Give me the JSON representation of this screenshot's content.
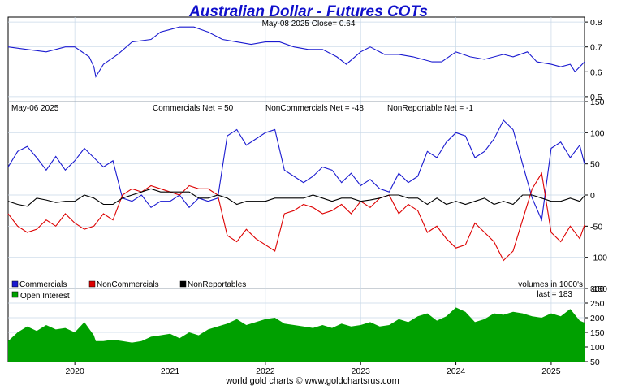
{
  "title": "Australian Dollar - Futures COTs",
  "footer": "world gold charts © www.goldchartsrus.com",
  "colors": {
    "price": "#1a1ad0",
    "commercials": "#1a1ad0",
    "noncommercials": "#dd0000",
    "nonreportables": "#000000",
    "open_interest": "#00a000",
    "grid": "#c8d8e8",
    "title": "#1010cc"
  },
  "price_panel": {
    "header": "May-08  2025   Close= 0.64",
    "y_ticks": [
      "0.8",
      "0.7",
      "0.6",
      "0.5"
    ]
  },
  "cot_panel": {
    "date": "May-06  2025",
    "commercials_net": "Commercials Net = 50",
    "noncommercials_net": "NonCommercials Net = -48",
    "nonreportable_net": "NonReportable Net = -1",
    "y_ticks": [
      "150",
      "100",
      "50",
      "0",
      "-50",
      "-100",
      "-150"
    ],
    "legend": [
      "Commercials",
      "NonCommercials",
      "NonReportables"
    ],
    "units": "volumes in 1000's"
  },
  "oi_panel": {
    "legend": "Open Interest",
    "last": "last = 183",
    "y_ticks": [
      "300",
      "250",
      "200",
      "150",
      "100",
      "50"
    ]
  },
  "x_ticks": [
    "2020",
    "2021",
    "2022",
    "2023",
    "2024",
    "2025"
  ],
  "chart_data": [
    {
      "type": "line",
      "name": "price",
      "x": [
        2019.3,
        2019.5,
        2019.7,
        2019.9,
        2020.0,
        2020.15,
        2020.2,
        2020.22,
        2020.3,
        2020.45,
        2020.6,
        2020.8,
        2020.9,
        2021.0,
        2021.1,
        2021.25,
        2021.4,
        2021.55,
        2021.7,
        2021.85,
        2022.0,
        2022.15,
        2022.3,
        2022.45,
        2022.6,
        2022.75,
        2022.85,
        2023.0,
        2023.1,
        2023.25,
        2023.4,
        2023.55,
        2023.75,
        2023.85,
        2024.0,
        2024.15,
        2024.3,
        2024.5,
        2024.6,
        2024.75,
        2024.85,
        2025.0,
        2025.1,
        2025.2,
        2025.25,
        2025.35
      ],
      "values": [
        0.7,
        0.69,
        0.68,
        0.7,
        0.7,
        0.66,
        0.62,
        0.58,
        0.63,
        0.67,
        0.72,
        0.73,
        0.76,
        0.77,
        0.78,
        0.78,
        0.76,
        0.73,
        0.72,
        0.71,
        0.72,
        0.72,
        0.7,
        0.69,
        0.69,
        0.66,
        0.63,
        0.68,
        0.7,
        0.67,
        0.67,
        0.66,
        0.64,
        0.64,
        0.68,
        0.66,
        0.65,
        0.67,
        0.66,
        0.68,
        0.64,
        0.63,
        0.62,
        0.63,
        0.6,
        0.64
      ],
      "ylim": [
        0.48,
        0.82
      ],
      "xlim": [
        2019.3,
        2025.35
      ]
    },
    {
      "type": "line",
      "x": [
        2019.3,
        2019.4,
        2019.5,
        2019.6,
        2019.7,
        2019.8,
        2019.9,
        2020.0,
        2020.1,
        2020.2,
        2020.3,
        2020.4,
        2020.5,
        2020.6,
        2020.7,
        2020.8,
        2020.9,
        2021.0,
        2021.1,
        2021.2,
        2021.3,
        2021.4,
        2021.5,
        2021.6,
        2021.7,
        2021.8,
        2021.9,
        2022.0,
        2022.1,
        2022.2,
        2022.3,
        2022.4,
        2022.5,
        2022.6,
        2022.7,
        2022.8,
        2022.9,
        2023.0,
        2023.1,
        2023.2,
        2023.3,
        2023.4,
        2023.5,
        2023.6,
        2023.7,
        2023.8,
        2023.9,
        2024.0,
        2024.1,
        2024.2,
        2024.3,
        2024.4,
        2024.5,
        2024.6,
        2024.7,
        2024.8,
        2024.9,
        2025.0,
        2025.1,
        2025.2,
        2025.3,
        2025.35
      ],
      "series": [
        {
          "name": "Commercials",
          "values": [
            45,
            70,
            78,
            60,
            40,
            62,
            40,
            55,
            75,
            60,
            45,
            55,
            -5,
            -10,
            0,
            -20,
            -10,
            -10,
            0,
            -20,
            -5,
            -10,
            -5,
            95,
            105,
            80,
            90,
            100,
            105,
            40,
            30,
            20,
            30,
            45,
            40,
            20,
            35,
            15,
            25,
            10,
            5,
            35,
            20,
            30,
            70,
            60,
            85,
            100,
            95,
            60,
            70,
            90,
            120,
            105,
            50,
            -5,
            -40,
            75,
            85,
            60,
            80,
            50
          ]
        },
        {
          "name": "NonCommercials",
          "values": [
            -30,
            -50,
            -60,
            -55,
            -40,
            -50,
            -30,
            -45,
            -55,
            -50,
            -30,
            -40,
            0,
            10,
            5,
            15,
            10,
            5,
            0,
            15,
            10,
            10,
            0,
            -65,
            -75,
            -55,
            -70,
            -80,
            -90,
            -30,
            -25,
            -15,
            -20,
            -30,
            -25,
            -15,
            -30,
            -10,
            -20,
            -5,
            0,
            -30,
            -15,
            -25,
            -60,
            -50,
            -70,
            -85,
            -80,
            -45,
            -60,
            -75,
            -105,
            -90,
            -40,
            10,
            35,
            -60,
            -75,
            -50,
            -70,
            -48
          ]
        },
        {
          "name": "NonReportables",
          "values": [
            -10,
            -15,
            -18,
            -5,
            -8,
            -12,
            -10,
            -10,
            0,
            -5,
            -15,
            -15,
            -5,
            0,
            5,
            10,
            5,
            5,
            5,
            5,
            -5,
            -5,
            0,
            -5,
            -15,
            -10,
            -10,
            -10,
            -5,
            -5,
            -5,
            -5,
            0,
            -5,
            -10,
            -5,
            -5,
            -10,
            -8,
            -5,
            0,
            0,
            -5,
            -5,
            -15,
            -5,
            -15,
            -10,
            -15,
            -10,
            -5,
            -15,
            -10,
            -15,
            0,
            0,
            -5,
            -10,
            -10,
            -5,
            -10,
            -1
          ]
        }
      ],
      "ylim": [
        -150,
        150
      ],
      "xlim": [
        2019.3,
        2025.35
      ]
    },
    {
      "type": "area",
      "name": "Open Interest",
      "x": [
        2019.3,
        2019.4,
        2019.5,
        2019.6,
        2019.7,
        2019.8,
        2019.9,
        2020.0,
        2020.1,
        2020.2,
        2020.22,
        2020.3,
        2020.4,
        2020.5,
        2020.6,
        2020.7,
        2020.8,
        2020.9,
        2021.0,
        2021.1,
        2021.2,
        2021.3,
        2021.4,
        2021.5,
        2021.6,
        2021.7,
        2021.8,
        2021.9,
        2022.0,
        2022.1,
        2022.2,
        2022.3,
        2022.4,
        2022.5,
        2022.6,
        2022.7,
        2022.8,
        2022.9,
        2023.0,
        2023.1,
        2023.2,
        2023.3,
        2023.4,
        2023.5,
        2023.6,
        2023.7,
        2023.8,
        2023.9,
        2024.0,
        2024.1,
        2024.2,
        2024.3,
        2024.4,
        2024.5,
        2024.6,
        2024.7,
        2024.8,
        2024.9,
        2025.0,
        2025.1,
        2025.2,
        2025.3,
        2025.35
      ],
      "values": [
        120,
        150,
        170,
        155,
        175,
        160,
        165,
        150,
        185,
        140,
        120,
        120,
        125,
        120,
        115,
        120,
        135,
        140,
        145,
        130,
        150,
        140,
        160,
        170,
        180,
        195,
        175,
        185,
        195,
        200,
        180,
        175,
        170,
        165,
        175,
        165,
        180,
        170,
        175,
        185,
        170,
        175,
        195,
        185,
        205,
        215,
        190,
        205,
        235,
        220,
        185,
        195,
        215,
        210,
        220,
        215,
        205,
        200,
        215,
        205,
        230,
        190,
        183
      ],
      "ylim": [
        50,
        300
      ],
      "xlim": [
        2019.3,
        2025.35
      ]
    }
  ]
}
